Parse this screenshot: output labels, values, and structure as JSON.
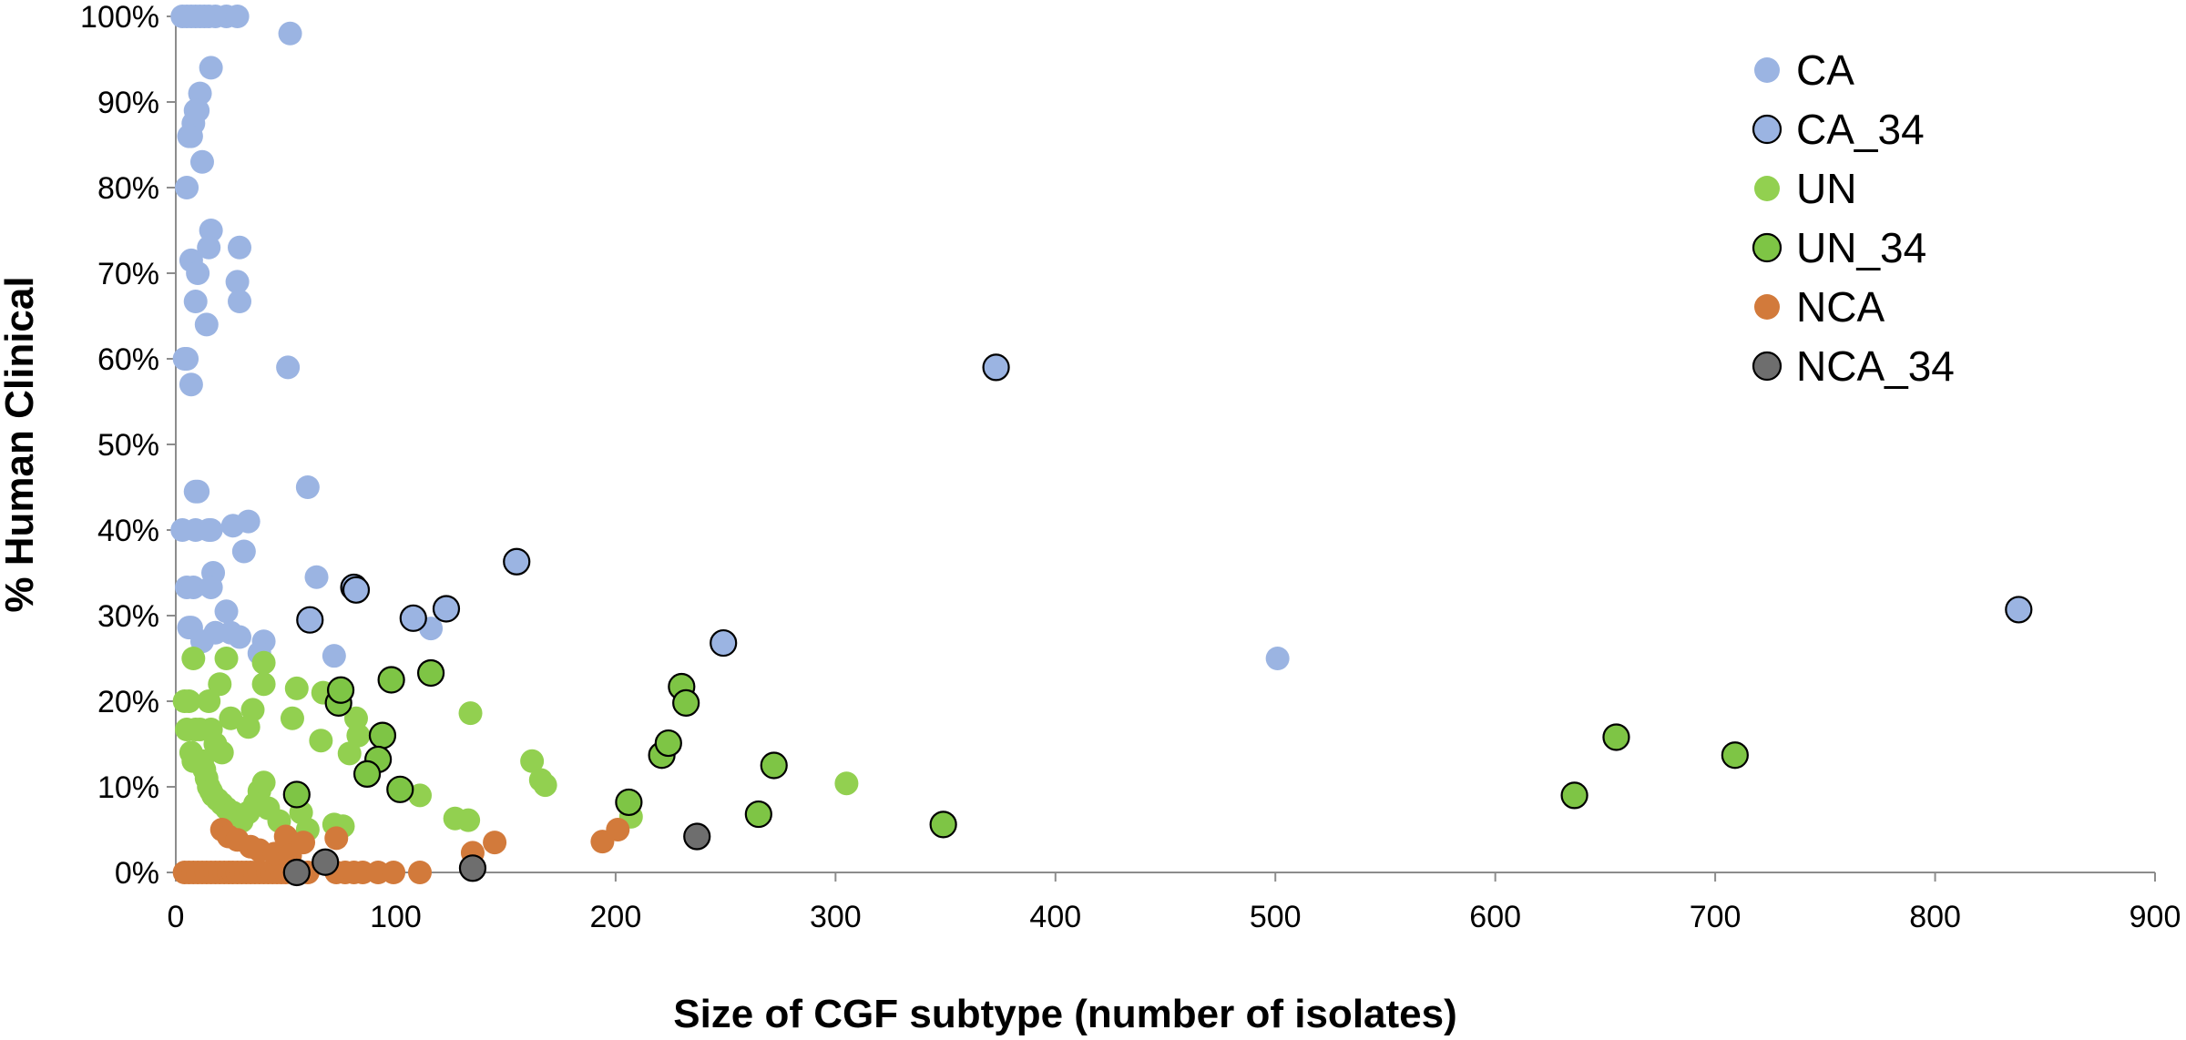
{
  "chart_data": {
    "type": "scatter",
    "xlabel": "Size of CGF subtype (number of isolates)",
    "ylabel": "% Human Clinical",
    "xlim": [
      0,
      900
    ],
    "ylim": [
      0,
      100
    ],
    "x_ticks": [
      "0",
      "100",
      "200",
      "300",
      "400",
      "500",
      "600",
      "700",
      "800",
      "900"
    ],
    "y_ticks": [
      "0%",
      "10%",
      "20%",
      "30%",
      "40%",
      "50%",
      "60%",
      "70%",
      "80%",
      "90%",
      "100%"
    ],
    "grid": false,
    "legend_position": "top-right",
    "series": [
      {
        "name": "CA",
        "color": "#9bb4e2",
        "outlined": false,
        "points": [
          [
            3,
            100
          ],
          [
            5,
            100
          ],
          [
            7,
            100
          ],
          [
            9,
            100
          ],
          [
            11,
            100
          ],
          [
            13,
            100
          ],
          [
            15,
            100
          ],
          [
            18,
            100
          ],
          [
            23,
            100
          ],
          [
            28,
            100
          ],
          [
            52,
            98
          ],
          [
            16,
            94
          ],
          [
            11,
            91
          ],
          [
            10,
            89
          ],
          [
            9,
            89
          ],
          [
            8,
            87.5
          ],
          [
            7,
            86
          ],
          [
            6,
            86
          ],
          [
            12,
            83
          ],
          [
            5,
            80
          ],
          [
            16,
            75
          ],
          [
            15,
            73
          ],
          [
            29,
            73
          ],
          [
            7,
            71.5
          ],
          [
            10,
            70
          ],
          [
            28,
            69
          ],
          [
            9,
            66.7
          ],
          [
            29,
            66.7
          ],
          [
            14,
            64
          ],
          [
            4,
            60
          ],
          [
            5,
            60
          ],
          [
            51,
            59
          ],
          [
            7,
            57
          ],
          [
            60,
            45
          ],
          [
            9,
            44.5
          ],
          [
            10,
            44.5
          ],
          [
            33,
            41
          ],
          [
            26,
            40.5
          ],
          [
            3,
            40
          ],
          [
            9,
            40
          ],
          [
            15,
            40
          ],
          [
            16,
            40
          ],
          [
            17,
            35
          ],
          [
            31,
            37.5
          ],
          [
            64,
            34.5
          ],
          [
            5,
            33.3
          ],
          [
            8,
            33.3
          ],
          [
            16,
            33.3
          ],
          [
            23,
            30.5
          ],
          [
            6,
            28.6
          ],
          [
            7,
            28.6
          ],
          [
            25,
            28
          ],
          [
            29,
            27.5
          ],
          [
            18,
            28
          ],
          [
            40,
            27
          ],
          [
            12,
            27
          ],
          [
            38,
            25.6
          ],
          [
            72,
            25.3
          ],
          [
            116,
            28.5
          ],
          [
            501,
            25
          ]
        ]
      },
      {
        "name": "CA_34",
        "color": "#9bb4e2",
        "outlined": true,
        "points": [
          [
            373,
            59
          ],
          [
            155,
            36.3
          ],
          [
            81,
            33.3
          ],
          [
            82,
            33
          ],
          [
            61,
            29.5
          ],
          [
            108,
            29.7
          ],
          [
            123,
            30.8
          ],
          [
            249,
            26.8
          ],
          [
            838,
            30.7
          ]
        ]
      },
      {
        "name": "UN",
        "color": "#92d050",
        "outlined": false,
        "points": [
          [
            8,
            25
          ],
          [
            23,
            25
          ],
          [
            40,
            24.5
          ],
          [
            20,
            22
          ],
          [
            40,
            22
          ],
          [
            55,
            21.5
          ],
          [
            67,
            21
          ],
          [
            4,
            20
          ],
          [
            6,
            20
          ],
          [
            15,
            20
          ],
          [
            35,
            19
          ],
          [
            25,
            18
          ],
          [
            53,
            18
          ],
          [
            82,
            18
          ],
          [
            134,
            18.6
          ],
          [
            5,
            16.7
          ],
          [
            9,
            16.7
          ],
          [
            11,
            16.7
          ],
          [
            16,
            16.7
          ],
          [
            18,
            15
          ],
          [
            21,
            14
          ],
          [
            33,
            17
          ],
          [
            66,
            15.4
          ],
          [
            83,
            16
          ],
          [
            7,
            14
          ],
          [
            8,
            13
          ],
          [
            12,
            13
          ],
          [
            13,
            12
          ],
          [
            14,
            11
          ],
          [
            15,
            10
          ],
          [
            16,
            9.5
          ],
          [
            17,
            9
          ],
          [
            19,
            8.5
          ],
          [
            21,
            8
          ],
          [
            23,
            7.5
          ],
          [
            26,
            7
          ],
          [
            28,
            6.5
          ],
          [
            30,
            6
          ],
          [
            33,
            7
          ],
          [
            36,
            8
          ],
          [
            38,
            9.5
          ],
          [
            40,
            10.5
          ],
          [
            42,
            7.5
          ],
          [
            47,
            6
          ],
          [
            57,
            7
          ],
          [
            79,
            13.9
          ],
          [
            60,
            5
          ],
          [
            72,
            5.6
          ],
          [
            76,
            5.4
          ],
          [
            111,
            9
          ],
          [
            127,
            6.3
          ],
          [
            133,
            6.1
          ],
          [
            162,
            13
          ],
          [
            166,
            10.8
          ],
          [
            168,
            10.2
          ],
          [
            207,
            6.5
          ],
          [
            305,
            10.4
          ]
        ]
      },
      {
        "name": "UN_34",
        "color": "#7ec545",
        "outlined": true,
        "points": [
          [
            74,
            19.8
          ],
          [
            75,
            21.3
          ],
          [
            98,
            22.5
          ],
          [
            116,
            23.3
          ],
          [
            94,
            16
          ],
          [
            92,
            13.2
          ],
          [
            87,
            11.5
          ],
          [
            102,
            9.7
          ],
          [
            55,
            9.1
          ],
          [
            206,
            8.2
          ],
          [
            221,
            13.7
          ],
          [
            224,
            15.1
          ],
          [
            230,
            21.7
          ],
          [
            232,
            19.8
          ],
          [
            272,
            12.5
          ],
          [
            265,
            6.8
          ],
          [
            349,
            5.6
          ],
          [
            636,
            9
          ],
          [
            655,
            15.8
          ],
          [
            709,
            13.7
          ]
        ]
      },
      {
        "name": "NCA",
        "color": "#d27a3b",
        "outlined": false,
        "points": [
          [
            4,
            0
          ],
          [
            6,
            0
          ],
          [
            8,
            0
          ],
          [
            10,
            0
          ],
          [
            12,
            0
          ],
          [
            14,
            0
          ],
          [
            16,
            0
          ],
          [
            18,
            0
          ],
          [
            20,
            0
          ],
          [
            22,
            0
          ],
          [
            24,
            0
          ],
          [
            26,
            0
          ],
          [
            28,
            0
          ],
          [
            30,
            0
          ],
          [
            32,
            0
          ],
          [
            34,
            0
          ],
          [
            36,
            0
          ],
          [
            38,
            0
          ],
          [
            40,
            0
          ],
          [
            42,
            0
          ],
          [
            44,
            0
          ],
          [
            46,
            0
          ],
          [
            48,
            0
          ],
          [
            50,
            0
          ],
          [
            60,
            0
          ],
          [
            73,
            0
          ],
          [
            77,
            0
          ],
          [
            81,
            0
          ],
          [
            85,
            0
          ],
          [
            92,
            0
          ],
          [
            99,
            0
          ],
          [
            111,
            0
          ],
          [
            21,
            5
          ],
          [
            24,
            4.2
          ],
          [
            28,
            3.8
          ],
          [
            34,
            3
          ],
          [
            38,
            2.6
          ],
          [
            45,
            2.2
          ],
          [
            50,
            4.2
          ],
          [
            52,
            2
          ],
          [
            58,
            3.5
          ],
          [
            73,
            4
          ],
          [
            135,
            2.3
          ],
          [
            145,
            3.5
          ],
          [
            194,
            3.6
          ],
          [
            201,
            5
          ]
        ]
      },
      {
        "name": "NCA_34",
        "color": "#6e6e6e",
        "outlined": true,
        "points": [
          [
            237,
            4.2
          ],
          [
            55,
            0
          ],
          [
            68,
            1.2
          ],
          [
            135,
            0.5
          ]
        ]
      }
    ]
  }
}
